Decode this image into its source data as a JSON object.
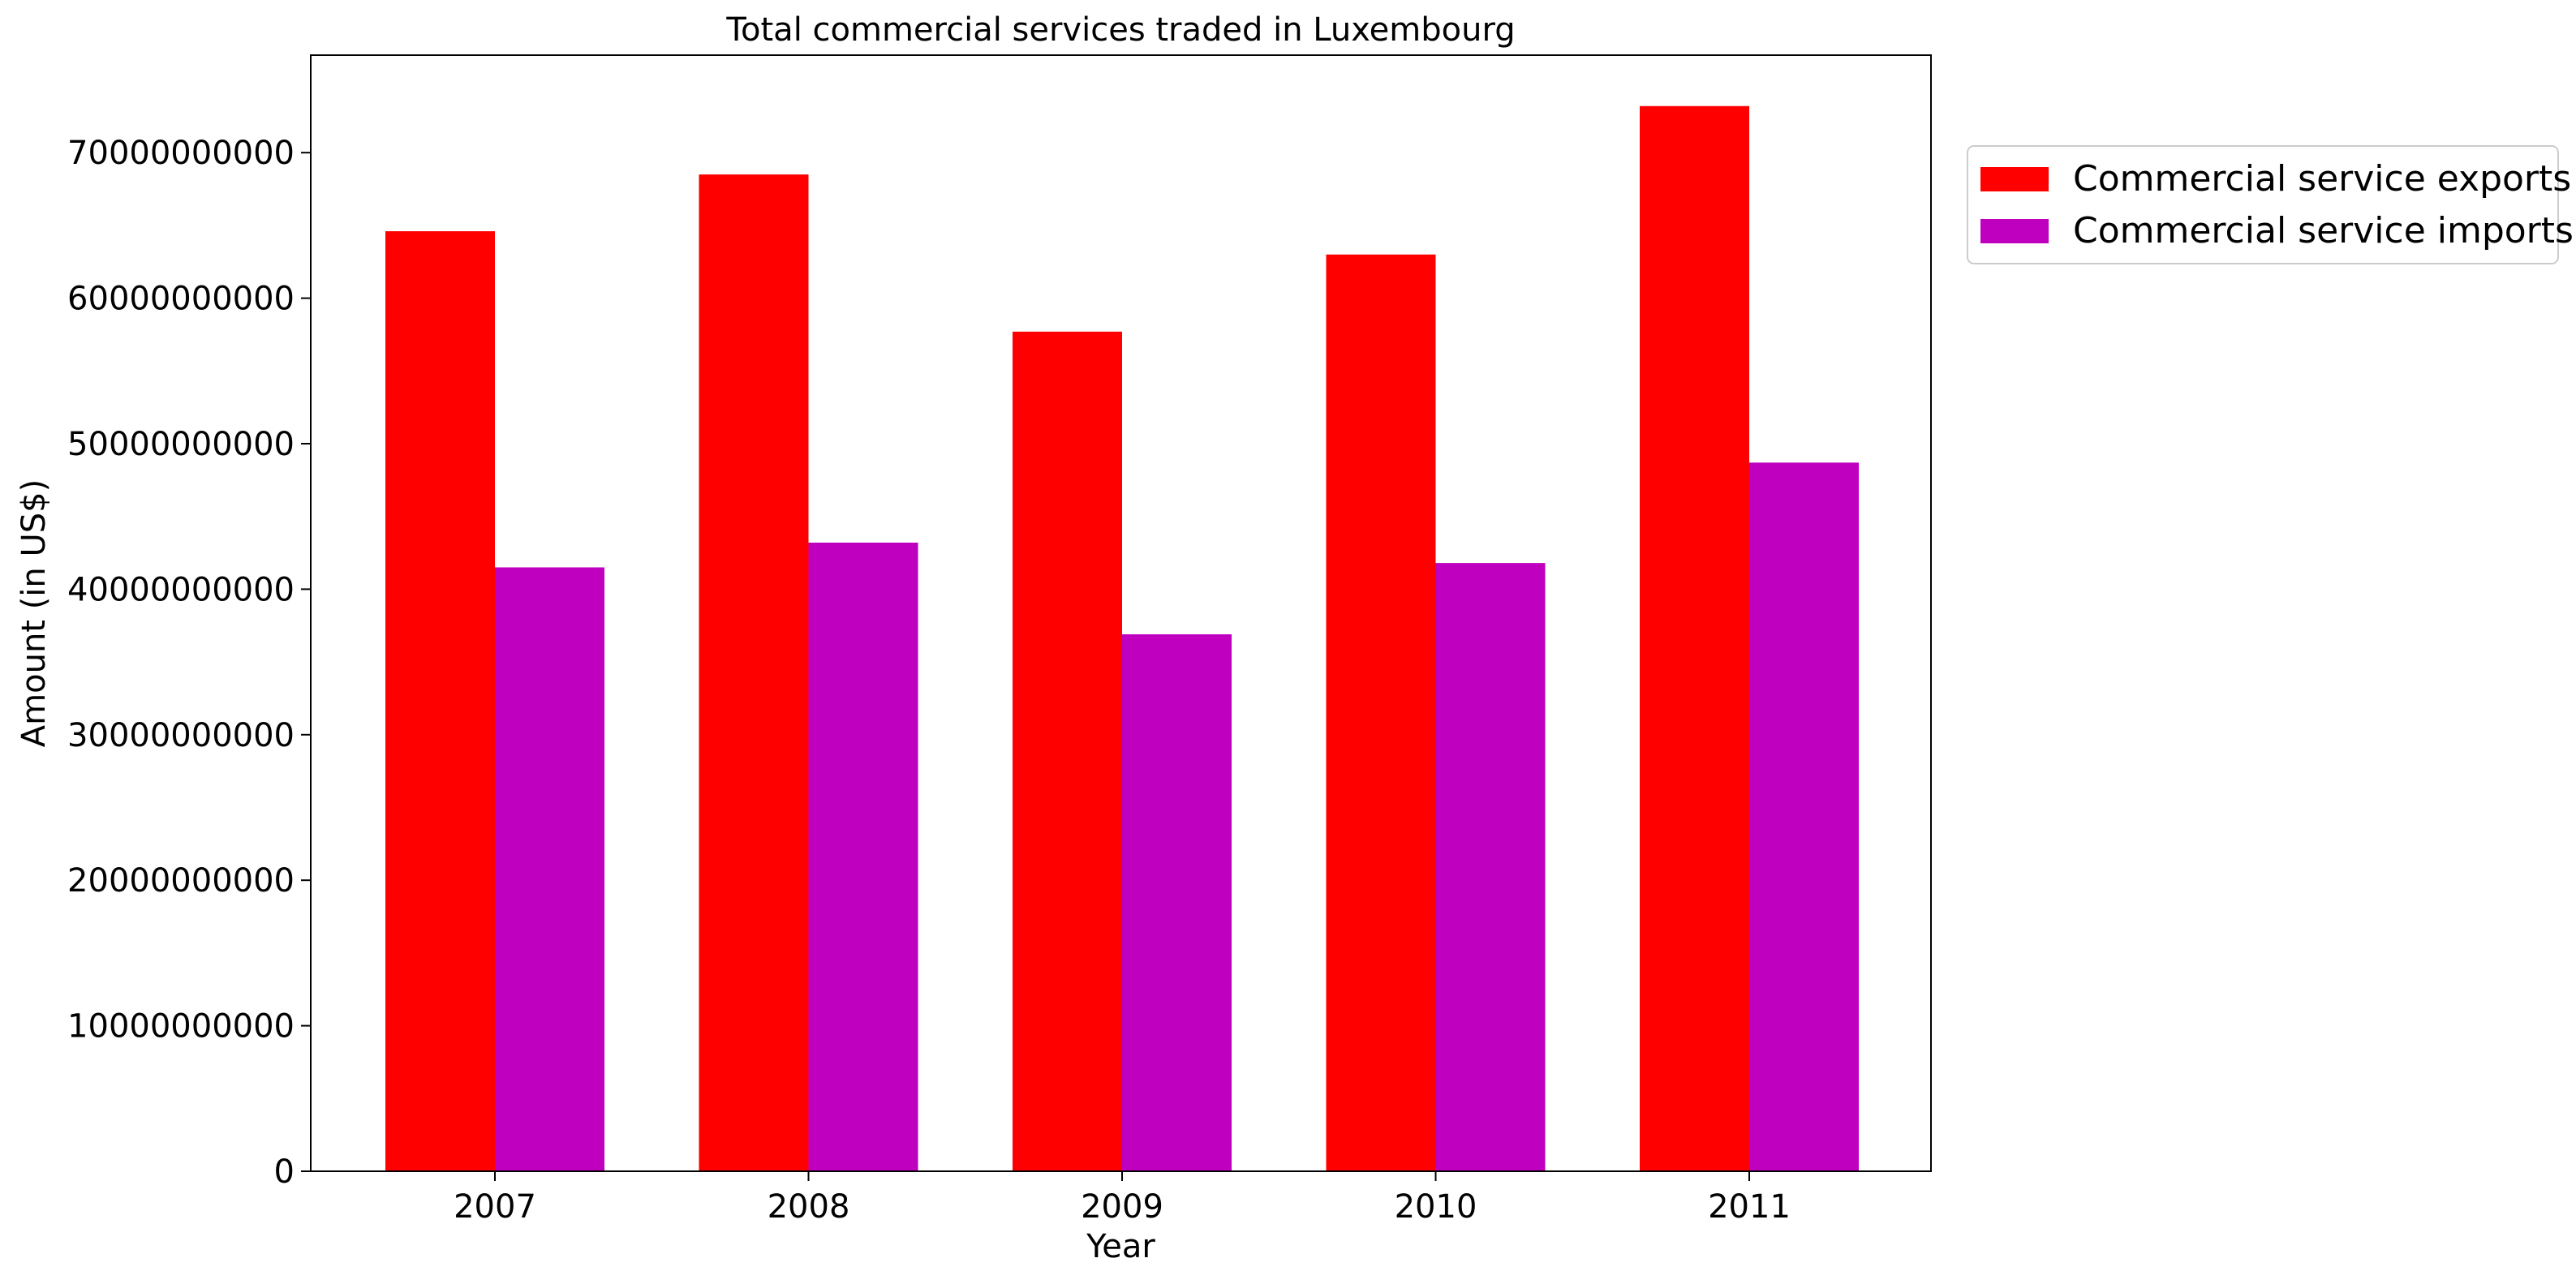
{
  "chart_data": {
    "type": "bar",
    "title": "Total commercial services traded in Luxembourg",
    "xlabel": "Year",
    "ylabel": "Amount (in US$)",
    "categories": [
      "2007",
      "2008",
      "2009",
      "2010",
      "2011"
    ],
    "series": [
      {
        "name": "Commercial service exports",
        "color": "#ff0000",
        "values": [
          64600000000,
          68500000000,
          57700000000,
          63000000000,
          73200000000
        ]
      },
      {
        "name": "Commercial service imports",
        "color": "#bf00bf",
        "values": [
          41500000000,
          43200000000,
          36900000000,
          41800000000,
          48700000000
        ]
      }
    ],
    "ylim": [
      0,
      76700000000
    ],
    "yticks": [
      "0",
      "10000000000",
      "20000000000",
      "30000000000",
      "40000000000",
      "50000000000",
      "60000000000",
      "70000000000"
    ],
    "grid": false,
    "legend_position": "outside top-right"
  }
}
